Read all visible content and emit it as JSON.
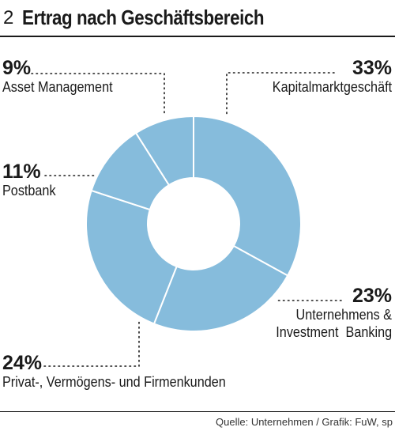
{
  "header": {
    "figure_number": "2",
    "title": "Ertrag nach Geschäftsbereich"
  },
  "footer": {
    "source": "Quelle: Unternehmen / Grafik: FuW, sp"
  },
  "colors": {
    "slice": "#86bcdc",
    "slice_border": "#ffffff",
    "leader": "#1a1a1a"
  },
  "chart_data": {
    "type": "pie",
    "donut": true,
    "unit": "%",
    "slices": [
      {
        "label": "Kapitalmarktgeschäft",
        "value": 33,
        "display": "33%"
      },
      {
        "label_lines": [
          "Unternehmens &",
          "Investment  Banking"
        ],
        "value": 23,
        "display": "23%"
      },
      {
        "label": "Privat-, Vermögens- und Firmenkunden",
        "value": 24,
        "display": "24%"
      },
      {
        "label": "Postbank",
        "value": 11,
        "display": "11%"
      },
      {
        "label": "Asset Management",
        "value": 9,
        "display": "9%"
      }
    ]
  }
}
